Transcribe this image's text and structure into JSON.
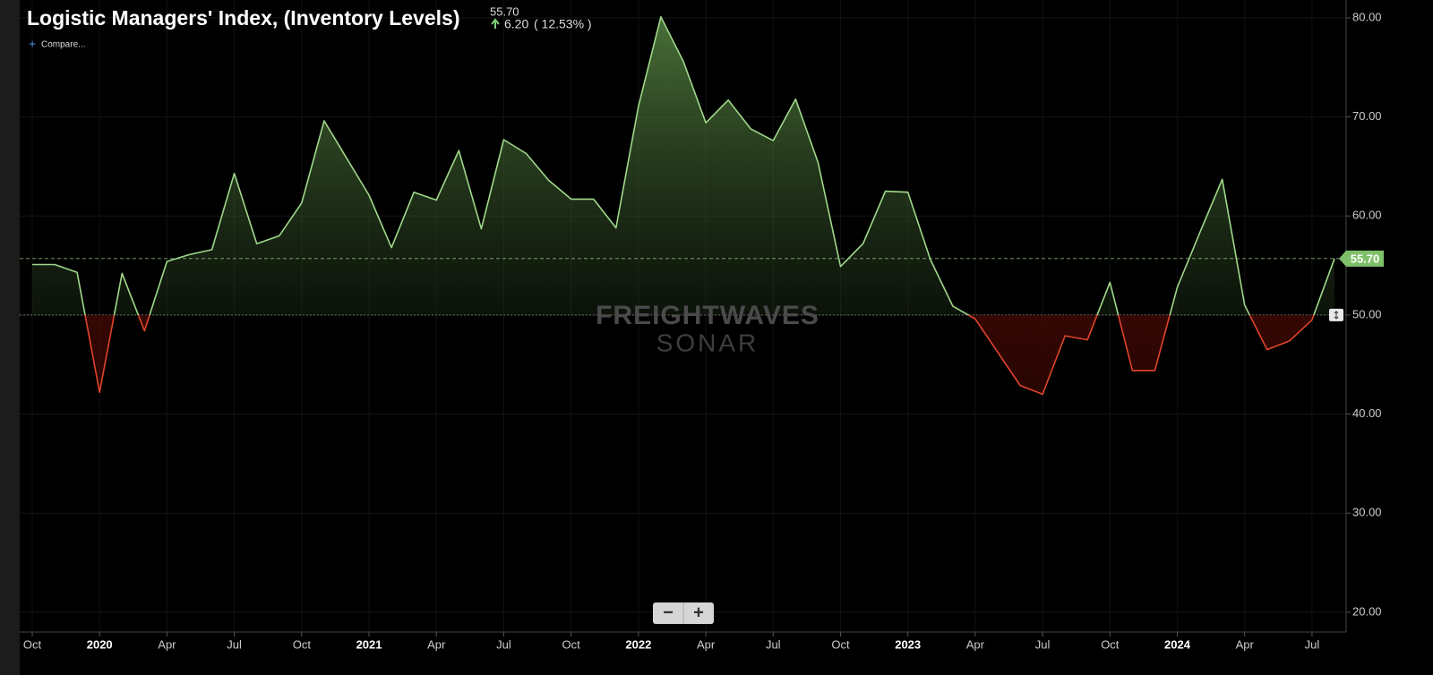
{
  "chart_data": {
    "type": "area",
    "title": "Logistic Managers' Index, (Inventory Levels)",
    "current": {
      "value": 55.7,
      "label": "55.70"
    },
    "change": "6.20",
    "change_pct": "( 12.53% )",
    "compare": "Compare...",
    "watermark": [
      "FREIGHTWAVES",
      "SONAR"
    ],
    "zoom_buttons": [
      "−",
      "+"
    ],
    "baseline": 50,
    "x": [
      "2019-10",
      "2019-11",
      "2019-12",
      "2020-01",
      "2020-02",
      "2020-03",
      "2020-04",
      "2020-05",
      "2020-06",
      "2020-07",
      "2020-08",
      "2020-09",
      "2020-10",
      "2020-11",
      "2021-01",
      "2021-02",
      "2021-03",
      "2021-04",
      "2021-05",
      "2021-06",
      "2021-07",
      "2021-08",
      "2021-09",
      "2021-10",
      "2021-11",
      "2021-12",
      "2022-01",
      "2022-02",
      "2022-03",
      "2022-04",
      "2022-05",
      "2022-06",
      "2022-07",
      "2022-08",
      "2022-09",
      "2022-10",
      "2022-11",
      "2022-12",
      "2023-01",
      "2023-02",
      "2023-03",
      "2023-04",
      "2023-06",
      "2023-07",
      "2023-08",
      "2023-09",
      "2023-10",
      "2023-11",
      "2023-12",
      "2024-01",
      "2024-02",
      "2024-03",
      "2024-04",
      "2024-05",
      "2024-06",
      "2024-07",
      "2024-08"
    ],
    "series": [
      {
        "name": "Inventory Levels",
        "color": "#9fd88a",
        "color_below": "#e0442a",
        "values": [
          55.1,
          55.1,
          54.3,
          42.2,
          54.2,
          48.4,
          55.4,
          56.1,
          56.6,
          64.3,
          57.2,
          58.0,
          61.3,
          69.6,
          62.1,
          56.8,
          62.4,
          61.6,
          66.6,
          58.7,
          67.7,
          66.3,
          63.6,
          61.7,
          61.7,
          58.8,
          71.1,
          80.1,
          75.6,
          69.4,
          71.7,
          68.8,
          67.6,
          71.8,
          65.4,
          54.9,
          57.2,
          62.5,
          62.4,
          55.6,
          50.9,
          49.6,
          42.9,
          42.0,
          47.9,
          47.5,
          53.3,
          44.4,
          44.4,
          52.8,
          58.3,
          63.7,
          51.0,
          46.5,
          47.4,
          49.5,
          55.7
        ]
      }
    ],
    "xlim": [
      "2019-10",
      "2024-08"
    ],
    "xticks": [
      {
        "value": "2019-10",
        "label": "Oct"
      },
      {
        "value": "2020-01",
        "label": "2020"
      },
      {
        "value": "2020-04",
        "label": "Apr"
      },
      {
        "value": "2020-07",
        "label": "Jul"
      },
      {
        "value": "2020-10",
        "label": "Oct"
      },
      {
        "value": "2021-01",
        "label": "2021"
      },
      {
        "value": "2021-04",
        "label": "Apr"
      },
      {
        "value": "2021-07",
        "label": "Jul"
      },
      {
        "value": "2021-10",
        "label": "Oct"
      },
      {
        "value": "2022-01",
        "label": "2022"
      },
      {
        "value": "2022-04",
        "label": "Apr"
      },
      {
        "value": "2022-07",
        "label": "Jul"
      },
      {
        "value": "2022-10",
        "label": "Oct"
      },
      {
        "value": "2023-01",
        "label": "2023"
      },
      {
        "value": "2023-04",
        "label": "Apr"
      },
      {
        "value": "2023-07",
        "label": "Jul"
      },
      {
        "value": "2023-10",
        "label": "Oct"
      },
      {
        "value": "2024-01",
        "label": "2024"
      },
      {
        "value": "2024-04",
        "label": "Apr"
      },
      {
        "value": "2024-07",
        "label": "Jul"
      }
    ],
    "ylim": [
      18,
      81.8
    ],
    "yticks": [
      {
        "value": 20,
        "label": "20.00"
      },
      {
        "value": 30,
        "label": "30.00"
      },
      {
        "value": 40,
        "label": "40.00"
      },
      {
        "value": 50,
        "label": "50.00"
      },
      {
        "value": 60,
        "label": "60.00"
      },
      {
        "value": 70,
        "label": "70.00"
      },
      {
        "value": 80,
        "label": "80.00"
      }
    ],
    "grid": true
  }
}
